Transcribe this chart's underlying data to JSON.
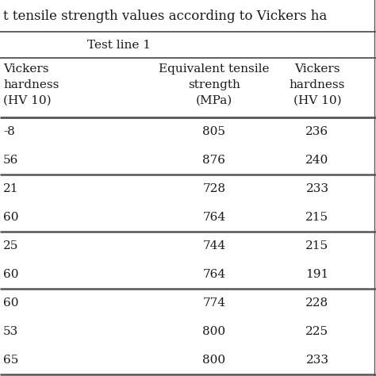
{
  "title": "t tensile strength values according to Vickers ha",
  "group_label": "Test line 1",
  "col_headers": [
    [
      "Vickers",
      "hardness",
      "(HV 10)"
    ],
    [
      "Equivalent tensile",
      "strength",
      "(MPa)"
    ],
    [
      "Vickers",
      "hardness",
      "(HV 10)"
    ]
  ],
  "groups": [
    {
      "rows": [
        [
          "-8",
          "805",
          "236"
        ],
        [
          "56",
          "876",
          "240"
        ]
      ]
    },
    {
      "rows": [
        [
          "21",
          "728",
          "233"
        ],
        [
          "60",
          "764",
          "215"
        ]
      ]
    },
    {
      "rows": [
        [
          "25",
          "744",
          "215"
        ],
        [
          "60",
          "764",
          "191"
        ]
      ]
    },
    {
      "rows": [
        [
          "60",
          "774",
          "228"
        ],
        [
          "53",
          "800",
          "225"
        ],
        [
          "65",
          "800",
          "233"
        ]
      ]
    }
  ],
  "background_color": "#ffffff",
  "text_color": "#1a1a1a",
  "line_color": "#555555",
  "font_size": 11,
  "header_font_size": 11,
  "title_font_size": 12
}
